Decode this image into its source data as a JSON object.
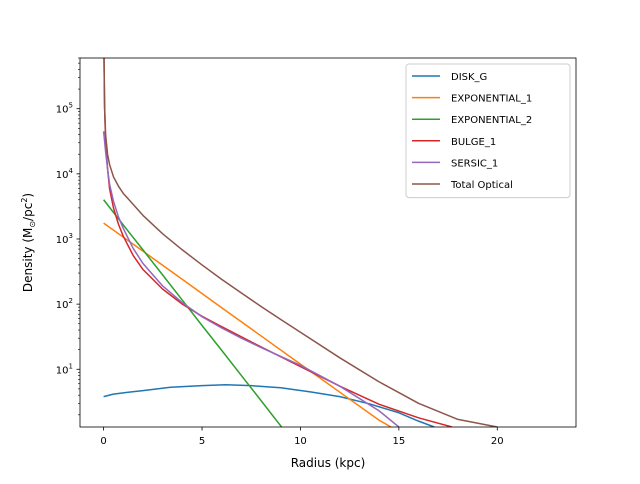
{
  "chart_data": {
    "type": "line",
    "title": "",
    "xlabel": "Radius (kpc)",
    "ylabel": "Density (M$_\\odot$/pc$^2$)",
    "ylabel_parts": {
      "prefix": "Density (M",
      "sub": "⊙",
      "mid": "/pc",
      "sup": "2",
      "suffix": ")"
    },
    "xlim": [
      -1.2,
      24
    ],
    "ylim": [
      1.3,
      600000
    ],
    "yscale": "log",
    "grid": false,
    "legend_position": "top-right",
    "x_ticks": [
      0,
      5,
      10,
      15,
      20
    ],
    "x_tick_labels": [
      "0",
      "5",
      "10",
      "15",
      "20"
    ],
    "y_ticks": [
      10,
      100,
      1000,
      10000,
      100000
    ],
    "y_tick_labels": [
      {
        "base": "10",
        "exp": "1"
      },
      {
        "base": "10",
        "exp": "2"
      },
      {
        "base": "10",
        "exp": "3"
      },
      {
        "base": "10",
        "exp": "4"
      },
      {
        "base": "10",
        "exp": "5"
      }
    ],
    "series": [
      {
        "name": "DISK_G",
        "color": "#1f77b4",
        "x": [
          0,
          0.5,
          1,
          2,
          3.4,
          5,
          6.2,
          7.5,
          9,
          10.5,
          12,
          13.5,
          15,
          16,
          16.8
        ],
        "y": [
          3.8,
          4.15,
          4.35,
          4.7,
          5.3,
          5.6,
          5.8,
          5.6,
          5.2,
          4.5,
          3.8,
          2.95,
          2.15,
          1.6,
          1.3
        ]
      },
      {
        "name": "EXPONENTIAL_1",
        "color": "#ff7f0e",
        "x": [
          0,
          2,
          4,
          6,
          8,
          10,
          12,
          14,
          14.6
        ],
        "y": [
          1750,
          650,
          240,
          88,
          32.5,
          12.0,
          4.45,
          1.65,
          1.3
        ]
      },
      {
        "name": "EXPONENTIAL_2",
        "color": "#2ca02c",
        "x": [
          0,
          1,
          2,
          3,
          4,
          5,
          6,
          7,
          8,
          9,
          10
        ],
        "y": [
          4000,
          1640,
          680,
          280,
          115,
          47,
          19.5,
          8.0,
          3.3,
          1.35,
          0.55
        ]
      },
      {
        "name": "BULGE_1",
        "color": "#d62728",
        "x": [
          0.02,
          0.05,
          0.1,
          0.2,
          0.3,
          0.5,
          0.75,
          1,
          1.5,
          2,
          3,
          4,
          5,
          6,
          8,
          10,
          12,
          14,
          16,
          17.7
        ],
        "y": [
          600000,
          100000,
          33000,
          12000,
          6000,
          3000,
          1700,
          1100,
          560,
          340,
          170,
          100,
          65,
          45,
          22,
          11,
          5.5,
          2.9,
          1.8,
          1.3
        ]
      },
      {
        "name": "SERSIC_1",
        "color": "#9467bd",
        "x": [
          0,
          0.1,
          0.2,
          0.3,
          0.5,
          0.75,
          1,
          1.5,
          2,
          3,
          4,
          5,
          6,
          7,
          8,
          10,
          12,
          14,
          15
        ],
        "y": [
          45000,
          22000,
          12000,
          7000,
          3800,
          2200,
          1450,
          720,
          420,
          190,
          105,
          64,
          43,
          30,
          21.5,
          11.5,
          5.5,
          2.3,
          1.3
        ]
      },
      {
        "name": "Total Optical",
        "color": "#8c564b",
        "x": [
          0.02,
          0.05,
          0.1,
          0.2,
          0.3,
          0.5,
          0.75,
          1,
          1.5,
          2,
          3,
          4,
          5,
          6,
          7,
          8,
          9,
          10,
          12,
          14,
          16,
          18,
          20
        ],
        "y": [
          600000,
          110000,
          40000,
          20000,
          14000,
          9000,
          6500,
          5000,
          3400,
          2300,
          1200,
          680,
          400,
          240,
          148,
          92,
          58,
          37,
          15,
          6.4,
          3.0,
          1.7,
          1.3
        ]
      }
    ]
  }
}
